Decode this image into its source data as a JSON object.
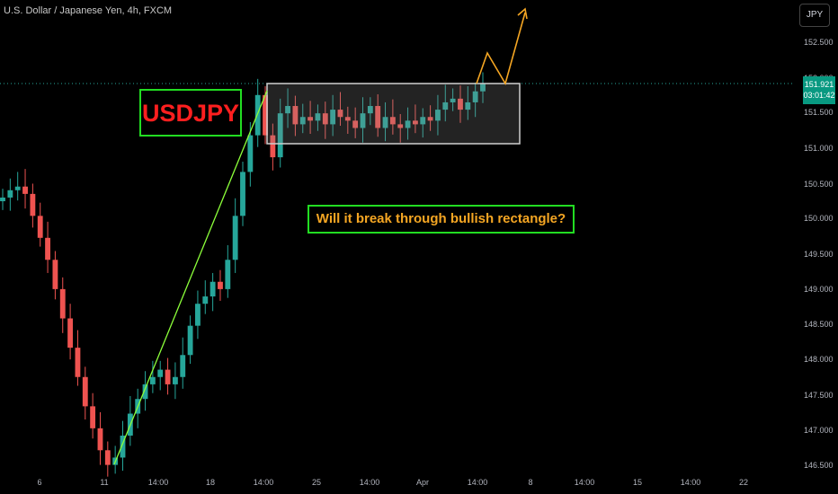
{
  "header": {
    "symbol_title": "U.S. Dollar / Japanese Yen, 4h, FXCM",
    "currency_button": "JPY"
  },
  "price_axis": {
    "ticks": [
      "152.500",
      "152.000",
      "151.500",
      "151.000",
      "150.500",
      "150.000",
      "149.500",
      "149.000",
      "148.500",
      "148.000",
      "147.500",
      "147.000",
      "146.500"
    ]
  },
  "time_axis": {
    "ticks": [
      "6",
      "11",
      "14:00",
      "18",
      "14:00",
      "25",
      "14:00",
      "Apr",
      "14:00",
      "8",
      "14:00",
      "15",
      "14:00",
      "22"
    ]
  },
  "current_price": {
    "price": "151.921",
    "countdown": "03:01:42",
    "color": "#089981"
  },
  "annotations": {
    "symbol_label": "USDJPY",
    "question": "Will it break through bullish rectangle?"
  },
  "colors": {
    "background": "#000000",
    "up_candle": "#26a69a",
    "down_candle": "#ef5350",
    "trendline": "#8cff3a",
    "projection": "#f5a623",
    "label_border": "#22dd22",
    "symbol_label_text": "#ff1f1f"
  },
  "chart_data": {
    "type": "candlestick",
    "instrument": "USDJPY",
    "timeframe": "4h",
    "price_range": [
      146.45,
      152.9
    ],
    "rectangle_range": [
      151.08,
      151.92
    ],
    "close_path": [
      150.35,
      150.45,
      150.5,
      150.4,
      150.1,
      149.8,
      149.5,
      149.1,
      148.7,
      148.3,
      147.9,
      147.5,
      147.2,
      146.9,
      146.7,
      146.8,
      147.1,
      147.4,
      147.6,
      147.8,
      147.9,
      148.0,
      147.8,
      147.9,
      148.2,
      148.6,
      148.9,
      149.0,
      149.2,
      149.1,
      149.5,
      150.1,
      150.7,
      151.2,
      151.75,
      151.2,
      150.9,
      151.5,
      151.6,
      151.35,
      151.45,
      151.4,
      151.5,
      151.35,
      151.55,
      151.45,
      151.4,
      151.3,
      151.5,
      151.6,
      151.3,
      151.45,
      151.35,
      151.3,
      151.4,
      151.35,
      151.45,
      151.4,
      151.55,
      151.65,
      151.7,
      151.55,
      151.65,
      151.8,
      151.9
    ]
  }
}
